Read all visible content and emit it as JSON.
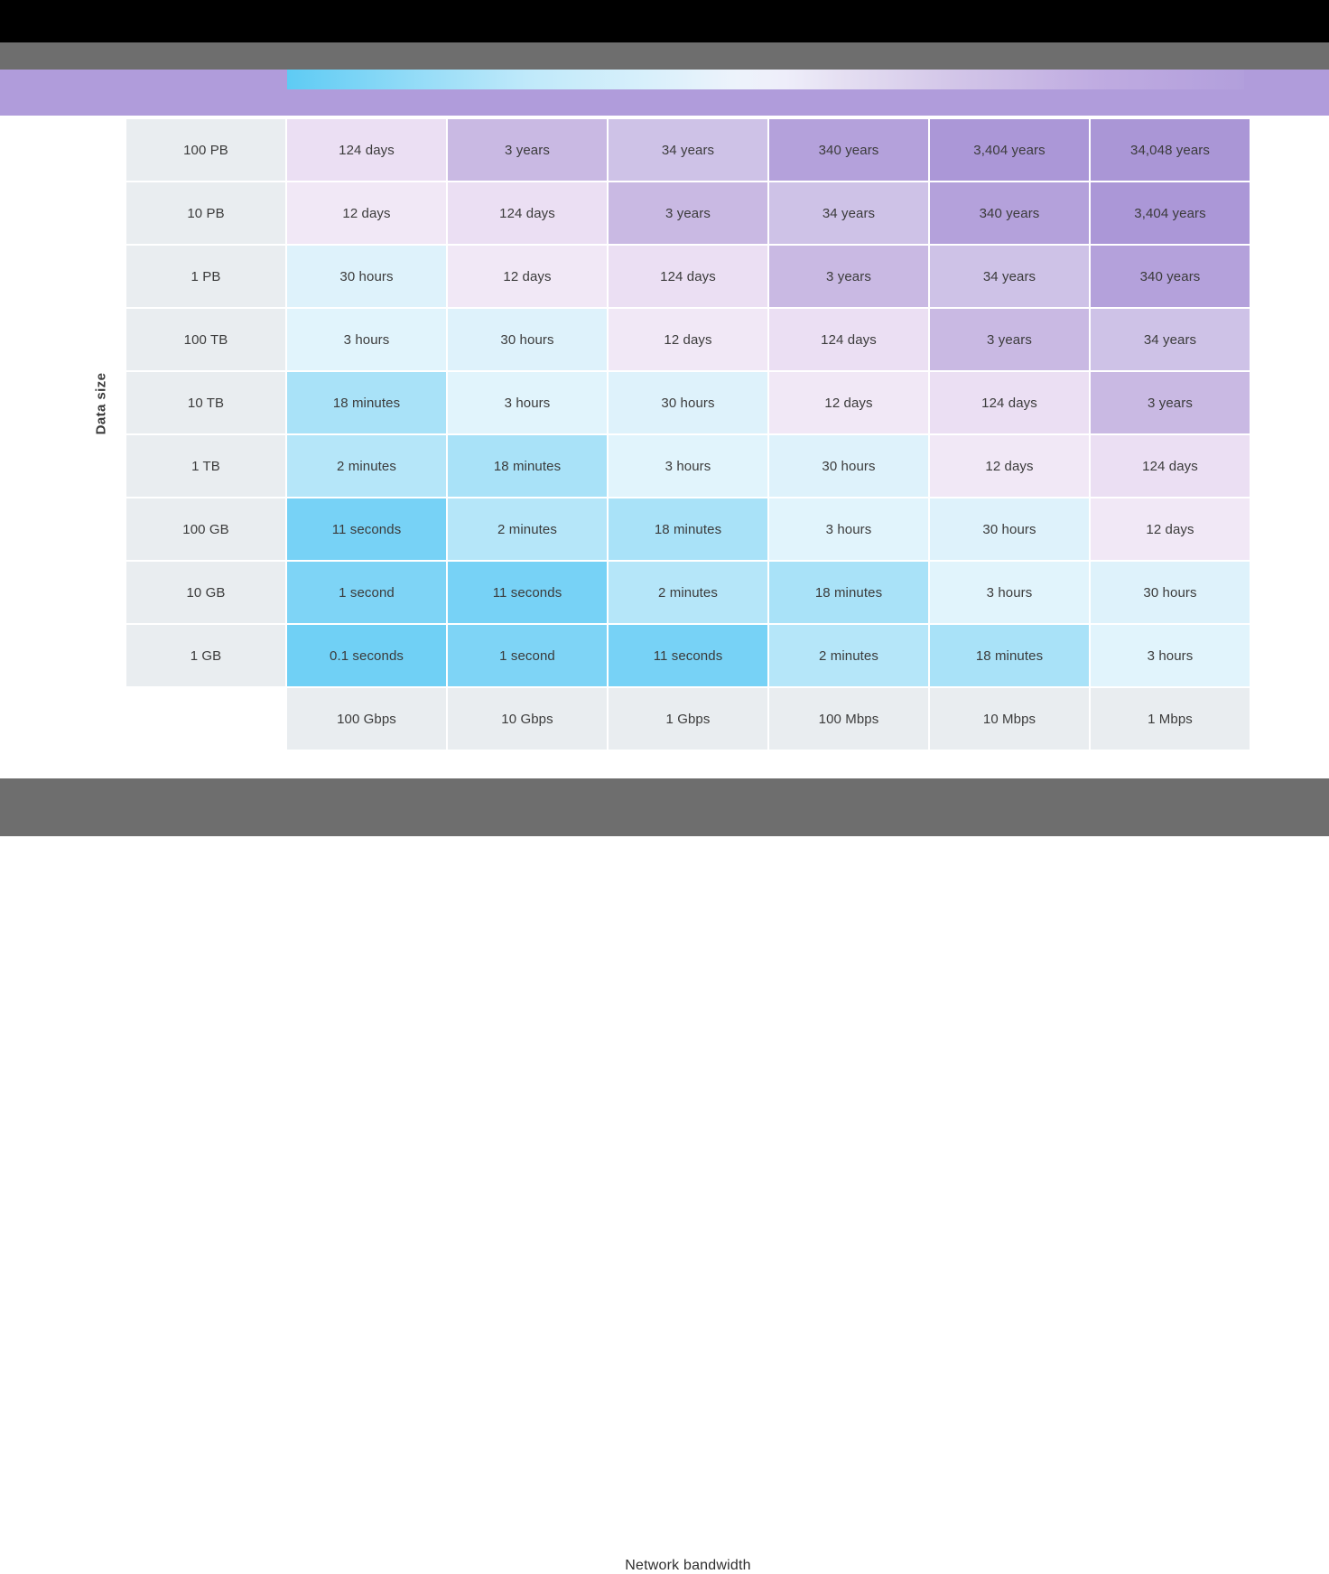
{
  "colors": {
    "chrome_black": "#000000",
    "chrome_gray": "#6e6e6e",
    "banner_purple": "#b09cdb",
    "header_cell_bg": "#e9edf0",
    "cell_text": "#3b3b3b",
    "page_bg": "#ffffff"
  },
  "chart_data": {
    "type": "heatmap",
    "ylabel": "Data size",
    "xlabel": "Network bandwidth",
    "rows": [
      "100 PB",
      "10 PB",
      "1 PB",
      "100 TB",
      "10 TB",
      "1 TB",
      "100 GB",
      "10 GB",
      "1 GB"
    ],
    "columns": [
      "100 Gbps",
      "10 Gbps",
      "1 Gbps",
      "100 Mbps",
      "10 Mbps",
      "1 Mbps"
    ],
    "cells": [
      [
        "124 days",
        "3 years",
        "34 years",
        "340 years",
        "3,404 years",
        "34,048 years"
      ],
      [
        "12 days",
        "124 days",
        "3 years",
        "34 years",
        "340 years",
        "3,404 years"
      ],
      [
        "30 hours",
        "12 days",
        "124 days",
        "3 years",
        "34 years",
        "340 years"
      ],
      [
        "3 hours",
        "30 hours",
        "12 days",
        "124 days",
        "3 years",
        "34 years"
      ],
      [
        "18 minutes",
        "3 hours",
        "30 hours",
        "12 days",
        "124 days",
        "3 years"
      ],
      [
        "2 minutes",
        "18 minutes",
        "3 hours",
        "30 hours",
        "12 days",
        "124 days"
      ],
      [
        "11 seconds",
        "2 minutes",
        "18 minutes",
        "3 hours",
        "30 hours",
        "12 days"
      ],
      [
        "1 second",
        "11 seconds",
        "2 minutes",
        "18 minutes",
        "3 hours",
        "30 hours"
      ],
      [
        "0.1 seconds",
        "1 second",
        "11 seconds",
        "2 minutes",
        "18 minutes",
        "3 hours"
      ]
    ],
    "palette": {
      "0.1 seconds": "#70d0f5",
      "1 second": "#7ed4f6",
      "11 seconds": "#77d2f6",
      "2 minutes": "#b5e6f9",
      "18 minutes": "#a9e2f8",
      "3 hours": "#e1f4fc",
      "30 hours": "#def2fb",
      "12 days": "#f1e8f6",
      "124 days": "#ebdff3",
      "3 years": "#c9b9e3",
      "34 years": "#cec2e7",
      "340 years": "#b4a1db",
      "3,404 years": "#ab97d7",
      "34,048 years": "#aa96d6"
    },
    "legend_position": "top",
    "legend_gradient_stops": [
      "#5ecbf4 0%",
      "#8edaf7 12%",
      "#bfe9fa 25%",
      "#d9f0fb 38%",
      "#edf3fb 47%",
      "#eeeefa 52%",
      "#e5dff2 58%",
      "#d2c5e8 70%",
      "#bfabe1 85%",
      "#b29fdc 100%"
    ]
  }
}
